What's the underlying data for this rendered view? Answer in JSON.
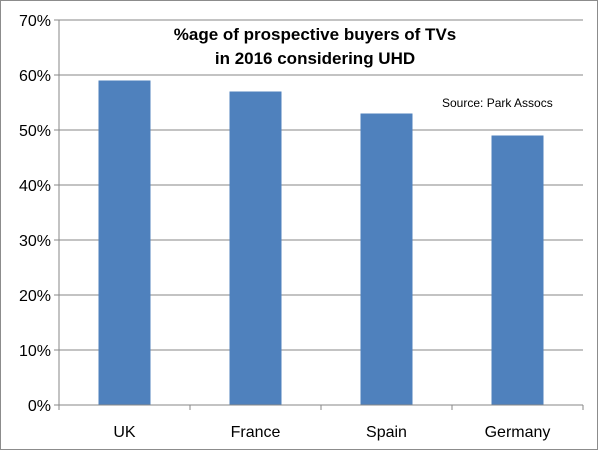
{
  "chart_data": {
    "type": "bar",
    "title_lines": [
      "%age of prospective buyers of TVs",
      "in 2016 considering UHD"
    ],
    "annotation": "Source: Park Assocs",
    "categories": [
      "UK",
      "France",
      "Spain",
      "Germany"
    ],
    "values": [
      59,
      57,
      53,
      49
    ],
    "ylim": [
      0,
      70
    ],
    "yticks": [
      0,
      10,
      20,
      30,
      40,
      50,
      60,
      70
    ],
    "ytick_labels": [
      "0%",
      "10%",
      "20%",
      "30%",
      "40%",
      "50%",
      "60%",
      "70%"
    ],
    "grid": true,
    "bar_color": "#4f81bd",
    "grid_color": "#878787",
    "axis_color": "#878787"
  }
}
